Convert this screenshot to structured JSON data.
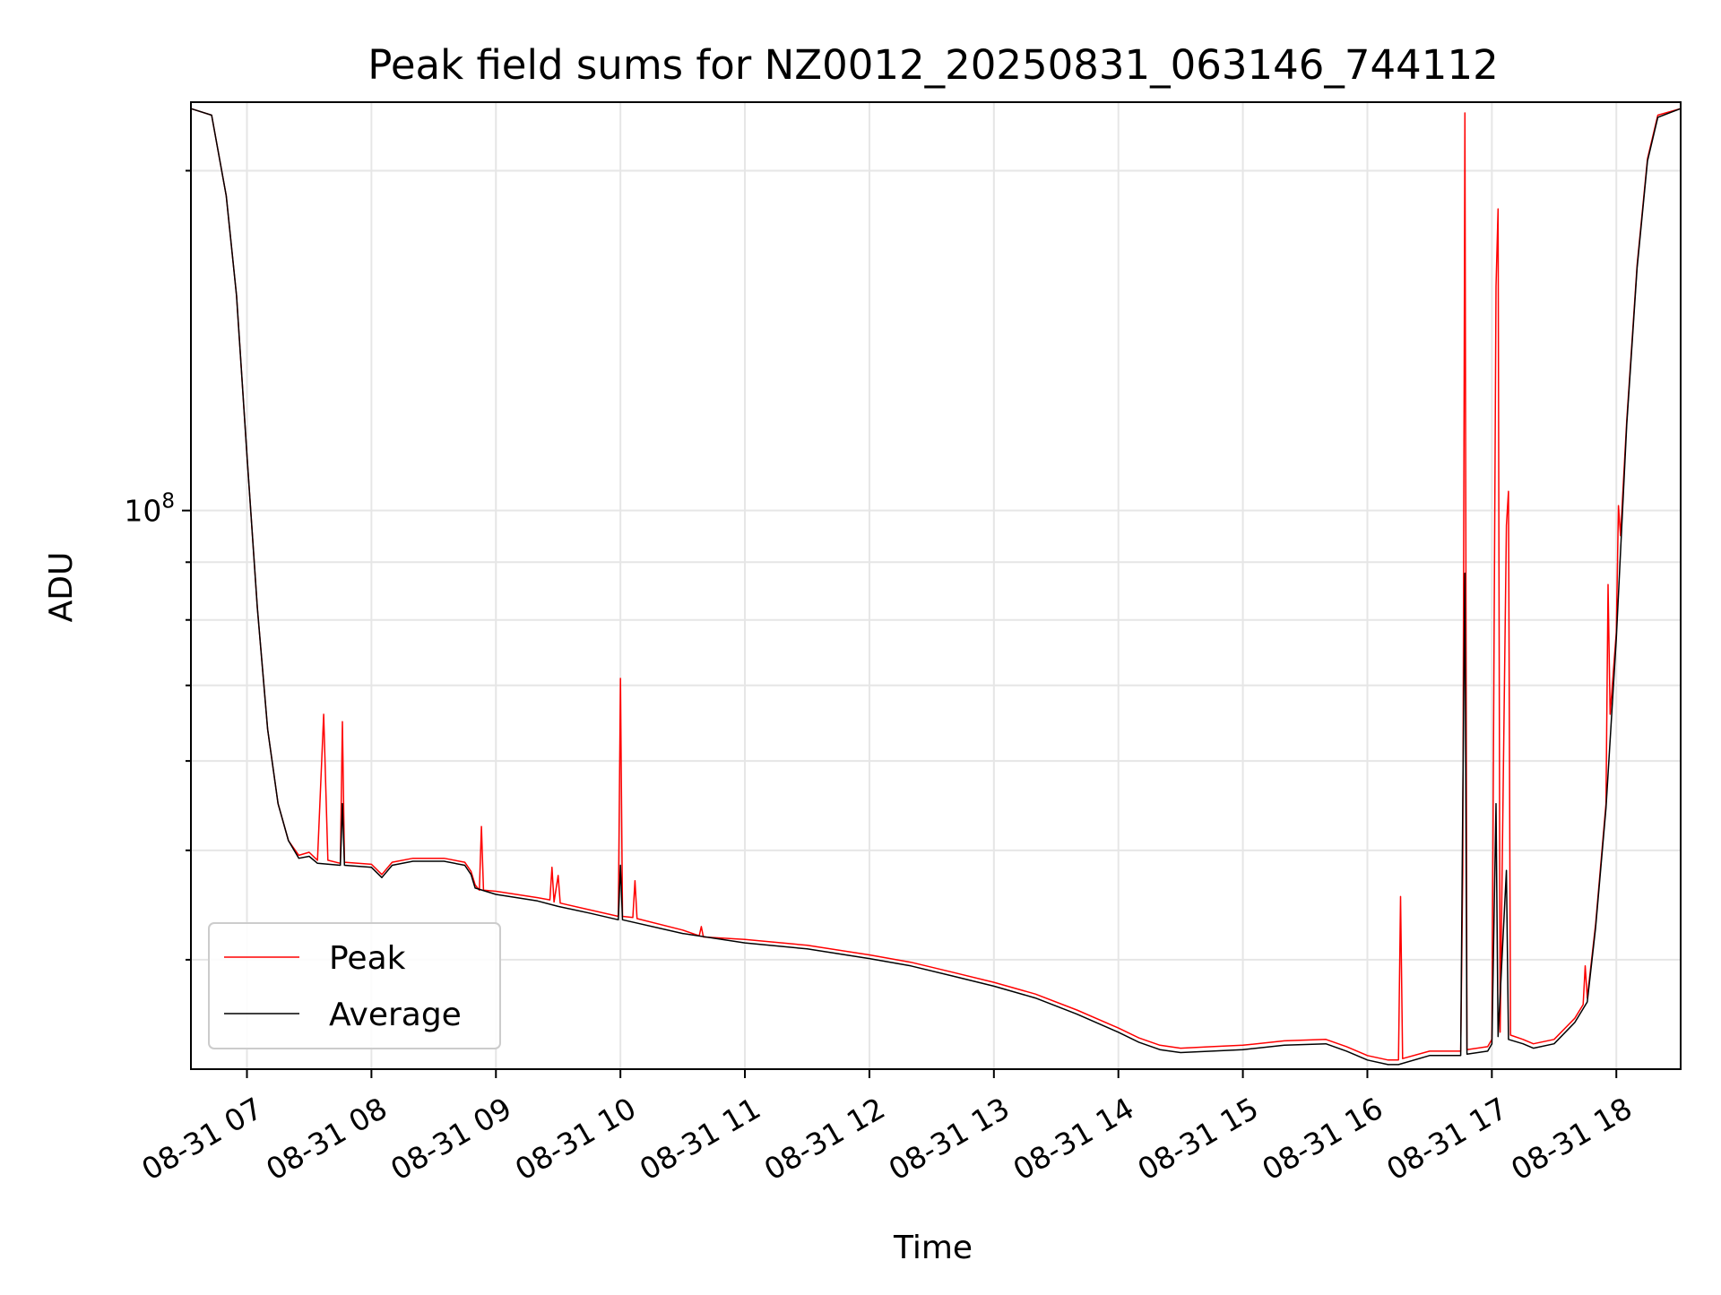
{
  "chart_data": {
    "type": "line",
    "title": "Peak field sums for NZ0012_20250831_063146_744112",
    "xlabel": "Time",
    "ylabel": "ADU",
    "yscale": "log",
    "grid": true,
    "legend_position": "lower-left",
    "xlim": [
      "2025-08-31 06:33",
      "2025-08-31 18:31"
    ],
    "ylim": [
      32000000,
      230000000
    ],
    "x_ticks": [
      {
        "value": "2025-08-31 07:00",
        "label": "08-31 07"
      },
      {
        "value": "2025-08-31 08:00",
        "label": "08-31 08"
      },
      {
        "value": "2025-08-31 09:00",
        "label": "08-31 09"
      },
      {
        "value": "2025-08-31 10:00",
        "label": "08-31 10"
      },
      {
        "value": "2025-08-31 11:00",
        "label": "08-31 11"
      },
      {
        "value": "2025-08-31 12:00",
        "label": "08-31 12"
      },
      {
        "value": "2025-08-31 13:00",
        "label": "08-31 13"
      },
      {
        "value": "2025-08-31 14:00",
        "label": "08-31 14"
      },
      {
        "value": "2025-08-31 15:00",
        "label": "08-31 15"
      },
      {
        "value": "2025-08-31 16:00",
        "label": "08-31 16"
      },
      {
        "value": "2025-08-31 17:00",
        "label": "08-31 17"
      },
      {
        "value": "2025-08-31 18:00",
        "label": "08-31 18"
      }
    ],
    "y_major_ticks": [
      {
        "value": 100000000,
        "label_base": "10",
        "label_exp": "8"
      }
    ],
    "y_minor_ticks": [
      40000000,
      50000000,
      60000000,
      70000000,
      80000000,
      90000000,
      200000000
    ],
    "series": [
      {
        "name": "Peak",
        "color": "#ff0000",
        "points": [
          [
            "2025-08-31 06:33",
            227000000
          ],
          [
            "2025-08-31 06:43",
            224000000
          ],
          [
            "2025-08-31 06:50",
            190000000
          ],
          [
            "2025-08-31 06:55",
            155000000
          ],
          [
            "2025-08-31 07:00",
            112000000
          ],
          [
            "2025-08-31 07:05",
            82000000
          ],
          [
            "2025-08-31 07:10",
            64000000
          ],
          [
            "2025-08-31 07:15",
            55000000
          ],
          [
            "2025-08-31 07:20",
            51000000
          ],
          [
            "2025-08-31 07:25",
            49500000
          ],
          [
            "2025-08-31 07:30",
            49800000
          ],
          [
            "2025-08-31 07:34",
            49000000
          ],
          [
            "2025-08-31 07:37",
            66000000
          ],
          [
            "2025-08-31 07:39",
            49000000
          ],
          [
            "2025-08-31 07:45",
            48700000
          ],
          [
            "2025-08-31 07:46",
            65000000
          ],
          [
            "2025-08-31 07:47",
            48800000
          ],
          [
            "2025-08-31 08:00",
            48600000
          ],
          [
            "2025-08-31 08:05",
            47600000
          ],
          [
            "2025-08-31 08:10",
            48800000
          ],
          [
            "2025-08-31 08:20",
            49200000
          ],
          [
            "2025-08-31 08:35",
            49200000
          ],
          [
            "2025-08-31 08:45",
            48800000
          ],
          [
            "2025-08-31 08:48",
            47900000
          ],
          [
            "2025-08-31 08:50",
            46600000
          ],
          [
            "2025-08-31 08:52",
            46100000
          ],
          [
            "2025-08-31 08:53",
            52500000
          ],
          [
            "2025-08-31 08:54",
            46100000
          ],
          [
            "2025-08-31 09:00",
            46000000
          ],
          [
            "2025-08-31 09:20",
            45400000
          ],
          [
            "2025-08-31 09:26",
            45200000
          ],
          [
            "2025-08-31 09:27",
            48300000
          ],
          [
            "2025-08-31 09:28",
            45000000
          ],
          [
            "2025-08-31 09:30",
            47500000
          ],
          [
            "2025-08-31 09:31",
            44900000
          ],
          [
            "2025-08-31 09:45",
            44300000
          ],
          [
            "2025-08-31 09:59",
            43700000
          ],
          [
            "2025-08-31 10:00",
            71000000
          ],
          [
            "2025-08-31 10:01",
            43700000
          ],
          [
            "2025-08-31 10:06",
            43600000
          ],
          [
            "2025-08-31 10:07",
            47000000
          ],
          [
            "2025-08-31 10:08",
            43500000
          ],
          [
            "2025-08-31 10:30",
            42500000
          ],
          [
            "2025-08-31 10:38",
            42000000
          ],
          [
            "2025-08-31 10:39",
            42800000
          ],
          [
            "2025-08-31 10:40",
            41900000
          ],
          [
            "2025-08-31 11:00",
            41700000
          ],
          [
            "2025-08-31 11:30",
            41200000
          ],
          [
            "2025-08-31 12:00",
            40400000
          ],
          [
            "2025-08-31 12:20",
            39800000
          ],
          [
            "2025-08-31 12:40",
            39000000
          ],
          [
            "2025-08-31 13:00",
            38200000
          ],
          [
            "2025-08-31 13:20",
            37300000
          ],
          [
            "2025-08-31 13:40",
            36100000
          ],
          [
            "2025-08-31 14:00",
            34800000
          ],
          [
            "2025-08-31 14:10",
            34100000
          ],
          [
            "2025-08-31 14:20",
            33600000
          ],
          [
            "2025-08-31 14:30",
            33400000
          ],
          [
            "2025-08-31 14:45",
            33500000
          ],
          [
            "2025-08-31 15:00",
            33600000
          ],
          [
            "2025-08-31 15:20",
            33900000
          ],
          [
            "2025-08-31 15:40",
            34000000
          ],
          [
            "2025-08-31 15:50",
            33500000
          ],
          [
            "2025-08-31 16:00",
            32900000
          ],
          [
            "2025-08-31 16:10",
            32600000
          ],
          [
            "2025-08-31 16:15",
            32600000
          ],
          [
            "2025-08-31 16:16",
            45500000
          ],
          [
            "2025-08-31 16:17",
            32700000
          ],
          [
            "2025-08-31 16:30",
            33200000
          ],
          [
            "2025-08-31 16:45",
            33200000
          ],
          [
            "2025-08-31 16:46",
            48000000
          ],
          [
            "2025-08-31 16:47",
            225000000
          ],
          [
            "2025-08-31 16:48",
            33300000
          ],
          [
            "2025-08-31 16:58",
            33500000
          ],
          [
            "2025-08-31 17:00",
            34000000
          ],
          [
            "2025-08-31 17:02",
            158000000
          ],
          [
            "2025-08-31 17:03",
            185000000
          ],
          [
            "2025-08-31 17:04",
            34500000
          ],
          [
            "2025-08-31 17:07",
            97000000
          ],
          [
            "2025-08-31 17:08",
            104000000
          ],
          [
            "2025-08-31 17:09",
            34300000
          ],
          [
            "2025-08-31 17:15",
            34000000
          ],
          [
            "2025-08-31 17:20",
            33700000
          ],
          [
            "2025-08-31 17:30",
            34000000
          ],
          [
            "2025-08-31 17:40",
            35500000
          ],
          [
            "2025-08-31 17:44",
            36500000
          ],
          [
            "2025-08-31 17:45",
            39500000
          ],
          [
            "2025-08-31 17:46",
            37000000
          ],
          [
            "2025-08-31 17:50",
            43000000
          ],
          [
            "2025-08-31 17:55",
            55000000
          ],
          [
            "2025-08-31 17:56",
            86000000
          ],
          [
            "2025-08-31 17:57",
            66000000
          ],
          [
            "2025-08-31 18:00",
            78000000
          ],
          [
            "2025-08-31 18:01",
            101000000
          ],
          [
            "2025-08-31 18:02",
            95000000
          ],
          [
            "2025-08-31 18:05",
            120000000
          ],
          [
            "2025-08-31 18:10",
            165000000
          ],
          [
            "2025-08-31 18:15",
            205000000
          ],
          [
            "2025-08-31 18:20",
            224000000
          ],
          [
            "2025-08-31 18:31",
            227000000
          ]
        ]
      },
      {
        "name": "Average",
        "color": "#000000",
        "points": [
          [
            "2025-08-31 06:33",
            227000000
          ],
          [
            "2025-08-31 06:43",
            224000000
          ],
          [
            "2025-08-31 06:50",
            190000000
          ],
          [
            "2025-08-31 06:55",
            155000000
          ],
          [
            "2025-08-31 07:00",
            112000000
          ],
          [
            "2025-08-31 07:05",
            82000000
          ],
          [
            "2025-08-31 07:10",
            64000000
          ],
          [
            "2025-08-31 07:15",
            55000000
          ],
          [
            "2025-08-31 07:20",
            51000000
          ],
          [
            "2025-08-31 07:25",
            49200000
          ],
          [
            "2025-08-31 07:30",
            49400000
          ],
          [
            "2025-08-31 07:34",
            48700000
          ],
          [
            "2025-08-31 07:45",
            48500000
          ],
          [
            "2025-08-31 07:46",
            55000000
          ],
          [
            "2025-08-31 07:47",
            48500000
          ],
          [
            "2025-08-31 08:00",
            48300000
          ],
          [
            "2025-08-31 08:05",
            47300000
          ],
          [
            "2025-08-31 08:10",
            48500000
          ],
          [
            "2025-08-31 08:20",
            48900000
          ],
          [
            "2025-08-31 08:35",
            48900000
          ],
          [
            "2025-08-31 08:45",
            48500000
          ],
          [
            "2025-08-31 08:48",
            47600000
          ],
          [
            "2025-08-31 08:50",
            46300000
          ],
          [
            "2025-08-31 09:00",
            45700000
          ],
          [
            "2025-08-31 09:20",
            45100000
          ],
          [
            "2025-08-31 09:30",
            44600000
          ],
          [
            "2025-08-31 09:45",
            44000000
          ],
          [
            "2025-08-31 09:59",
            43400000
          ],
          [
            "2025-08-31 10:00",
            48500000
          ],
          [
            "2025-08-31 10:01",
            43400000
          ],
          [
            "2025-08-31 10:30",
            42200000
          ],
          [
            "2025-08-31 11:00",
            41400000
          ],
          [
            "2025-08-31 11:30",
            40900000
          ],
          [
            "2025-08-31 12:00",
            40100000
          ],
          [
            "2025-08-31 12:20",
            39500000
          ],
          [
            "2025-08-31 12:40",
            38700000
          ],
          [
            "2025-08-31 13:00",
            37900000
          ],
          [
            "2025-08-31 13:20",
            37000000
          ],
          [
            "2025-08-31 13:40",
            35800000
          ],
          [
            "2025-08-31 14:00",
            34500000
          ],
          [
            "2025-08-31 14:10",
            33800000
          ],
          [
            "2025-08-31 14:20",
            33300000
          ],
          [
            "2025-08-31 14:30",
            33100000
          ],
          [
            "2025-08-31 14:45",
            33200000
          ],
          [
            "2025-08-31 15:00",
            33300000
          ],
          [
            "2025-08-31 15:20",
            33600000
          ],
          [
            "2025-08-31 15:40",
            33700000
          ],
          [
            "2025-08-31 15:50",
            33200000
          ],
          [
            "2025-08-31 16:00",
            32600000
          ],
          [
            "2025-08-31 16:10",
            32300000
          ],
          [
            "2025-08-31 16:15",
            32300000
          ],
          [
            "2025-08-31 16:30",
            32900000
          ],
          [
            "2025-08-31 16:45",
            32900000
          ],
          [
            "2025-08-31 16:46",
            55000000
          ],
          [
            "2025-08-31 16:47",
            88000000
          ],
          [
            "2025-08-31 16:48",
            33000000
          ],
          [
            "2025-08-31 16:58",
            33200000
          ],
          [
            "2025-08-31 17:00",
            33700000
          ],
          [
            "2025-08-31 17:02",
            55000000
          ],
          [
            "2025-08-31 17:03",
            34200000
          ],
          [
            "2025-08-31 17:07",
            48000000
          ],
          [
            "2025-08-31 17:08",
            34000000
          ],
          [
            "2025-08-31 17:15",
            33700000
          ],
          [
            "2025-08-31 17:20",
            33400000
          ],
          [
            "2025-08-31 17:30",
            33700000
          ],
          [
            "2025-08-31 17:40",
            35200000
          ],
          [
            "2025-08-31 17:46",
            36700000
          ],
          [
            "2025-08-31 17:50",
            42700000
          ],
          [
            "2025-08-31 17:55",
            54500000
          ],
          [
            "2025-08-31 18:00",
            77000000
          ],
          [
            "2025-08-31 18:05",
            119000000
          ],
          [
            "2025-08-31 18:10",
            164000000
          ],
          [
            "2025-08-31 18:15",
            204000000
          ],
          [
            "2025-08-31 18:20",
            223000000
          ],
          [
            "2025-08-31 18:31",
            227000000
          ]
        ]
      }
    ]
  }
}
